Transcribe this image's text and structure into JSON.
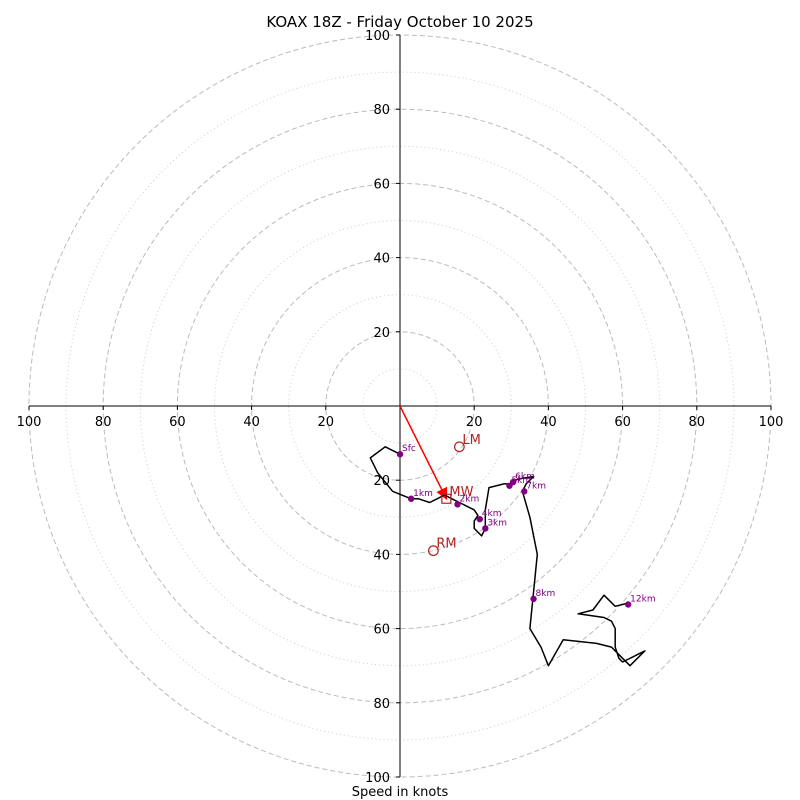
{
  "chart_data": {
    "type": "hodograph",
    "title": "KOAX 18Z - Friday October 10 2025",
    "xlabel": "Speed in knots",
    "xlim": [
      -100,
      100
    ],
    "ylim": [
      -100,
      100
    ],
    "ring_major": [
      20,
      40,
      60,
      80,
      100
    ],
    "ring_minor": [
      10,
      30,
      50,
      70,
      90
    ],
    "x_ticks": [
      {
        "value": -100,
        "label": "100"
      },
      {
        "value": -80,
        "label": "80"
      },
      {
        "value": -60,
        "label": "60"
      },
      {
        "value": -40,
        "label": "40"
      },
      {
        "value": -20,
        "label": "20"
      },
      {
        "value": 20,
        "label": "20"
      },
      {
        "value": 40,
        "label": "40"
      },
      {
        "value": 60,
        "label": "60"
      },
      {
        "value": 80,
        "label": "80"
      },
      {
        "value": 100,
        "label": "100"
      }
    ],
    "y_ticks": [
      {
        "value": 100,
        "label": "100"
      },
      {
        "value": 80,
        "label": "80"
      },
      {
        "value": 60,
        "label": "60"
      },
      {
        "value": 40,
        "label": "40"
      },
      {
        "value": 20,
        "label": "20"
      },
      {
        "value": -20,
        "label": "20"
      },
      {
        "value": -40,
        "label": "40"
      },
      {
        "value": -60,
        "label": "60"
      },
      {
        "value": -80,
        "label": "80"
      },
      {
        "value": -100,
        "label": "100"
      }
    ],
    "trace": {
      "color": "#000000",
      "points": [
        [
          0,
          -13
        ],
        [
          -4,
          -11
        ],
        [
          -8,
          -14
        ],
        [
          -6,
          -18
        ],
        [
          -2,
          -23
        ],
        [
          3,
          -25
        ],
        [
          5,
          -25
        ],
        [
          8,
          -26
        ],
        [
          10,
          -25
        ],
        [
          12,
          -24
        ],
        [
          14,
          -25
        ],
        [
          16,
          -26
        ],
        [
          18,
          -27
        ],
        [
          20,
          -28
        ],
        [
          21,
          -29.5
        ],
        [
          20,
          -31
        ],
        [
          20,
          -33
        ],
        [
          22,
          -35
        ],
        [
          23,
          -33
        ],
        [
          23,
          -32
        ],
        [
          23,
          -28
        ],
        [
          24,
          -22
        ],
        [
          28,
          -21
        ],
        [
          30,
          -21
        ],
        [
          31,
          -20
        ],
        [
          33,
          -19.5
        ],
        [
          36,
          -19
        ],
        [
          34,
          -21
        ],
        [
          33,
          -23
        ],
        [
          35,
          -30
        ],
        [
          37,
          -40
        ],
        [
          36,
          -50
        ],
        [
          35,
          -60
        ],
        [
          38,
          -65
        ],
        [
          40,
          -70
        ],
        [
          44,
          -63
        ],
        [
          53,
          -64
        ],
        [
          57,
          -65
        ],
        [
          60,
          -68
        ],
        [
          62,
          -70
        ],
        [
          66,
          -66
        ],
        [
          64,
          -67
        ],
        [
          60,
          -69
        ],
        [
          59,
          -68
        ],
        [
          58,
          -65
        ],
        [
          58,
          -60
        ],
        [
          57,
          -58
        ],
        [
          55,
          -57
        ],
        [
          48,
          -56
        ],
        [
          52,
          -55
        ],
        [
          55,
          -51
        ],
        [
          58,
          -54
        ],
        [
          62,
          -53
        ]
      ]
    },
    "height_markers": [
      {
        "label": "Sfc",
        "u": 0,
        "v": -13
      },
      {
        "label": "1km",
        "u": 3,
        "v": -25
      },
      {
        "label": "2km",
        "u": 15.5,
        "v": -26.5
      },
      {
        "label": "3km",
        "u": 23,
        "v": -33
      },
      {
        "label": "4km",
        "u": 21.5,
        "v": -30.5
      },
      {
        "label": "5km",
        "u": 29.5,
        "v": -21.5
      },
      {
        "label": "6km",
        "u": 30.5,
        "v": -20.5
      },
      {
        "label": "7km",
        "u": 33.5,
        "v": -23
      },
      {
        "label": "8km",
        "u": 36,
        "v": -52
      },
      {
        "label": "12km",
        "u": 61.5,
        "v": -53.5
      }
    ],
    "motion_markers": [
      {
        "label": "LM",
        "u": 16,
        "v": -11,
        "shape": "circle"
      },
      {
        "label": "RM",
        "u": 9,
        "v": -39,
        "shape": "circle"
      },
      {
        "label": "MW",
        "u": 12.5,
        "v": -25,
        "shape": "square"
      }
    ],
    "mean_wind_vector": {
      "from": [
        0,
        0
      ],
      "to": [
        12.5,
        -25
      ],
      "color": "#ff0000"
    },
    "colors": {
      "trace": "#000000",
      "markers": "#800080",
      "motion": "#b22222",
      "vector": "#ff0000",
      "grid": "#bbbbbb"
    }
  }
}
